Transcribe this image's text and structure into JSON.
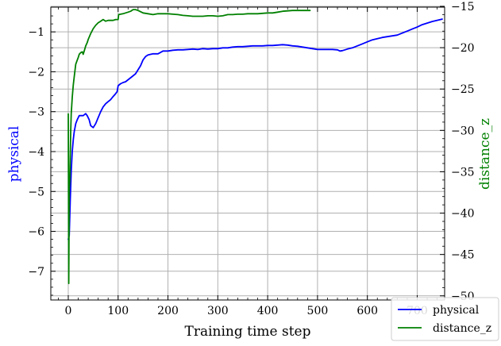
{
  "chart_data": {
    "type": "line",
    "xlabel": "Training time step",
    "ylabel_left": "physical",
    "ylabel_right": "distance_z",
    "xlim": [
      -35,
      755
    ],
    "ylim_left": [
      -7.72,
      -0.38
    ],
    "ylim_right": [
      -50.5,
      -15.1
    ],
    "x_ticks": [
      0,
      100,
      200,
      300,
      400,
      500,
      600,
      700
    ],
    "x_tick_labels": [
      "0",
      "100",
      "200",
      "300",
      "400",
      "500",
      "600",
      "700"
    ],
    "y_left_ticks": [
      -1,
      -2,
      -3,
      -4,
      -5,
      -6,
      -7
    ],
    "y_left_tick_labels": [
      "−1",
      "−2",
      "−3",
      "−4",
      "−5",
      "−6",
      "−7"
    ],
    "y_right_ticks": [
      -15,
      -20,
      -25,
      -30,
      -35,
      -40,
      -45,
      -50
    ],
    "y_right_tick_labels": [
      "−15",
      "−20",
      "−25",
      "−30",
      "−35",
      "−40",
      "−45",
      "−50"
    ],
    "grid": true,
    "legend_position": "bottom-right",
    "series": [
      {
        "name": "physical",
        "color": "#0000ff",
        "axis": "left",
        "x": [
          0,
          2,
          4,
          6,
          8,
          10,
          12,
          15,
          18,
          22,
          26,
          30,
          35,
          38,
          42,
          45,
          50,
          55,
          60,
          65,
          70,
          75,
          80,
          85,
          90,
          95,
          98,
          100,
          105,
          110,
          115,
          120,
          125,
          130,
          135,
          140,
          145,
          150,
          155,
          160,
          170,
          180,
          190,
          200,
          210,
          220,
          230,
          240,
          250,
          260,
          270,
          280,
          290,
          300,
          310,
          320,
          330,
          340,
          350,
          360,
          370,
          380,
          390,
          400,
          410,
          420,
          430,
          440,
          450,
          460,
          470,
          480,
          490,
          500,
          510,
          520,
          530,
          540,
          545,
          550,
          560,
          570,
          580,
          590,
          600,
          610,
          620,
          630,
          640,
          650,
          660,
          670,
          680,
          690,
          700,
          710,
          720,
          730,
          740,
          750
        ],
        "y": [
          -6.2,
          -6.1,
          -5.2,
          -4.5,
          -4.0,
          -3.7,
          -3.5,
          -3.3,
          -3.2,
          -3.1,
          -3.1,
          -3.1,
          -3.05,
          -3.1,
          -3.2,
          -3.35,
          -3.4,
          -3.3,
          -3.15,
          -3.0,
          -2.88,
          -2.8,
          -2.75,
          -2.7,
          -2.62,
          -2.55,
          -2.5,
          -2.35,
          -2.3,
          -2.27,
          -2.25,
          -2.2,
          -2.15,
          -2.1,
          -2.05,
          -1.95,
          -1.85,
          -1.7,
          -1.62,
          -1.58,
          -1.55,
          -1.55,
          -1.48,
          -1.48,
          -1.46,
          -1.45,
          -1.45,
          -1.44,
          -1.43,
          -1.44,
          -1.42,
          -1.43,
          -1.42,
          -1.42,
          -1.4,
          -1.4,
          -1.38,
          -1.37,
          -1.37,
          -1.36,
          -1.35,
          -1.35,
          -1.35,
          -1.34,
          -1.34,
          -1.33,
          -1.32,
          -1.33,
          -1.35,
          -1.36,
          -1.38,
          -1.4,
          -1.42,
          -1.44,
          -1.44,
          -1.44,
          -1.44,
          -1.45,
          -1.48,
          -1.47,
          -1.43,
          -1.4,
          -1.35,
          -1.3,
          -1.25,
          -1.2,
          -1.17,
          -1.14,
          -1.12,
          -1.1,
          -1.08,
          -1.03,
          -0.98,
          -0.93,
          -0.88,
          -0.82,
          -0.78,
          -0.74,
          -0.71,
          -0.68
        ]
      },
      {
        "name": "distance_z",
        "color": "#008000",
        "axis": "right",
        "x": [
          0,
          1,
          2,
          3,
          4,
          5,
          6,
          8,
          10,
          12,
          15,
          18,
          20,
          22,
          25,
          28,
          30,
          33,
          35,
          38,
          40,
          45,
          50,
          55,
          60,
          65,
          70,
          75,
          80,
          85,
          90,
          95,
          100,
          101,
          110,
          120,
          125,
          130,
          135,
          140,
          150,
          160,
          170,
          180,
          190,
          200,
          210,
          220,
          230,
          240,
          250,
          260,
          270,
          280,
          290,
          300,
          310,
          320,
          330,
          340,
          350,
          360,
          370,
          380,
          390,
          400,
          410,
          420,
          430,
          440,
          450,
          460,
          470,
          480,
          485
        ],
        "y": [
          -28,
          -48.5,
          -37,
          -36,
          -33,
          -30,
          -28,
          -26,
          -24.5,
          -23.5,
          -22,
          -21.5,
          -21.2,
          -20.8,
          -20.6,
          -20.5,
          -20.8,
          -20.2,
          -19.8,
          -19.4,
          -19,
          -18.3,
          -17.7,
          -17.3,
          -17,
          -16.8,
          -16.6,
          -16.8,
          -16.7,
          -16.7,
          -16.7,
          -16.6,
          -16.6,
          -16.0,
          -15.9,
          -15.7,
          -15.6,
          -15.4,
          -15.4,
          -15.5,
          -15.8,
          -15.9,
          -16.0,
          -15.9,
          -15.9,
          -15.9,
          -15.95,
          -16.0,
          -16.1,
          -16.15,
          -16.2,
          -16.2,
          -16.2,
          -16.15,
          -16.15,
          -16.2,
          -16.15,
          -16.0,
          -16.0,
          -15.95,
          -15.95,
          -15.9,
          -15.9,
          -15.9,
          -15.85,
          -15.8,
          -15.8,
          -15.7,
          -15.6,
          -15.55,
          -15.5,
          -15.5,
          -15.5,
          -15.5,
          -15.5
        ]
      }
    ]
  }
}
